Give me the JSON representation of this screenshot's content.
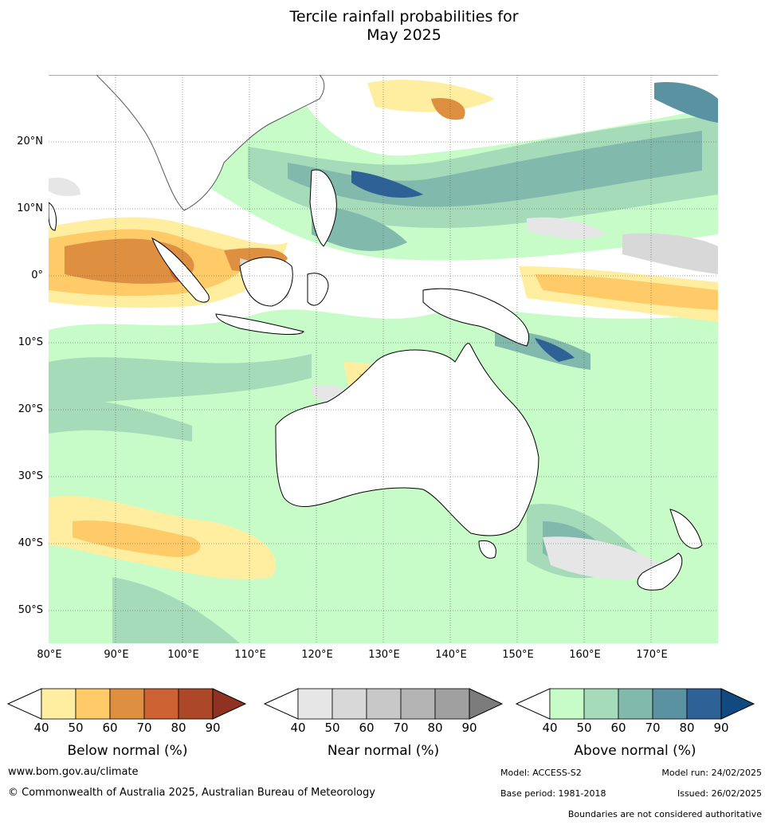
{
  "title_line1": "Tercile rainfall probabilities for",
  "title_line2": "May 2025",
  "lat_labels": [
    "20°N",
    "10°N",
    "0°",
    "10°S",
    "20°S",
    "30°S",
    "40°S",
    "50°S"
  ],
  "lon_labels": [
    "80°E",
    "90°E",
    "100°E",
    "110°E",
    "120°E",
    "130°E",
    "140°E",
    "150°E",
    "160°E",
    "170°E"
  ],
  "legends": {
    "below": {
      "title": "Below normal (%)",
      "ticks": [
        "40",
        "50",
        "60",
        "70",
        "80",
        "90"
      ],
      "colors": [
        "#ffeda0",
        "#fecb68",
        "#de9040",
        "#cd6233",
        "#ac4828",
        "#8f3222"
      ]
    },
    "near": {
      "title": "Near normal (%)",
      "ticks": [
        "40",
        "50",
        "60",
        "70",
        "80",
        "90"
      ],
      "colors": [
        "#e6e6e6",
        "#d8d8d8",
        "#c8c8c8",
        "#b4b4b4",
        "#a0a0a0",
        "#7c7c7c"
      ]
    },
    "above": {
      "title": "Above normal (%)",
      "ticks": [
        "40",
        "50",
        "60",
        "70",
        "80",
        "90"
      ],
      "colors": [
        "#c7fcc9",
        "#a6dbb9",
        "#82b9ad",
        "#5a92a2",
        "#2e6297",
        "#114a80"
      ]
    }
  },
  "footer": {
    "website": "www.bom.gov.au/climate",
    "copyright": "© Commonwealth of Australia 2025, Australian Bureau of Meteorology",
    "model": "Model: ACCESS-S2",
    "model_run": "Model run: 24/02/2025",
    "base_period": "Base period: 1981-2018",
    "issued": "Issued: 26/02/2025",
    "disclaimer": "Boundaries are not considered authoritative"
  }
}
